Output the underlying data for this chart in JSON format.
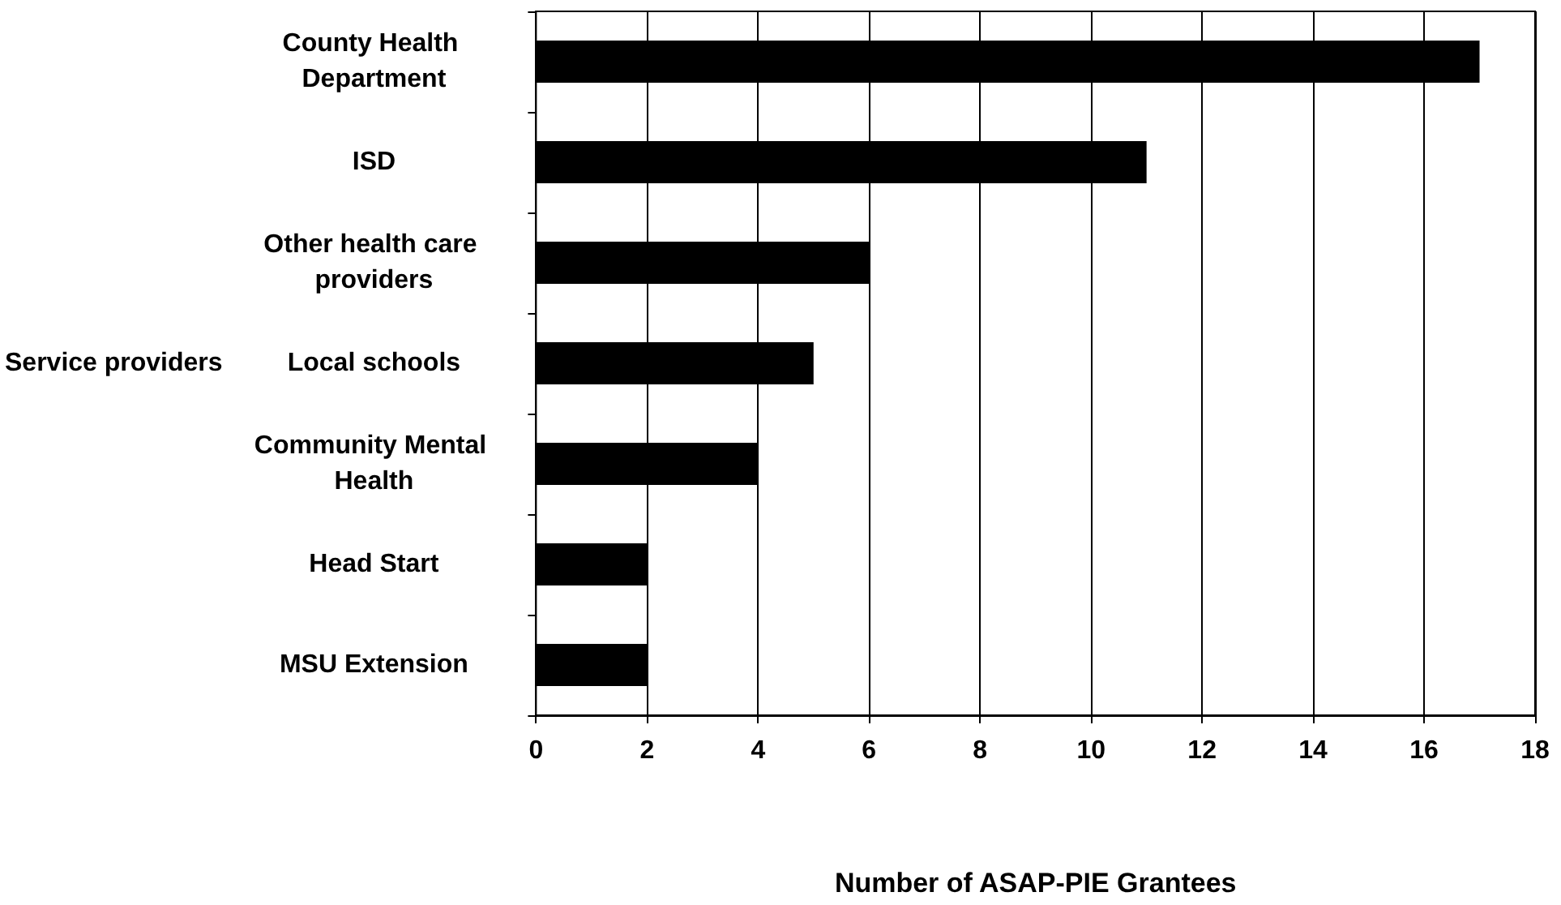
{
  "chart_data": {
    "type": "bar",
    "orientation": "horizontal",
    "categories": [
      "County Health Department",
      "ISD",
      "Other health care providers",
      "Local schools",
      "Community Mental Health",
      "Head Start",
      "MSU Extension"
    ],
    "values": [
      17,
      11,
      6,
      5,
      4,
      2,
      2
    ],
    "color": "#000000",
    "xlabel": "Number of ASAP-PIE Grantees",
    "ylabel": "Service providers",
    "xlim": [
      0,
      18
    ],
    "xticks": [
      0,
      2,
      4,
      6,
      8,
      10,
      12,
      14,
      16,
      18
    ],
    "grid": "x"
  }
}
